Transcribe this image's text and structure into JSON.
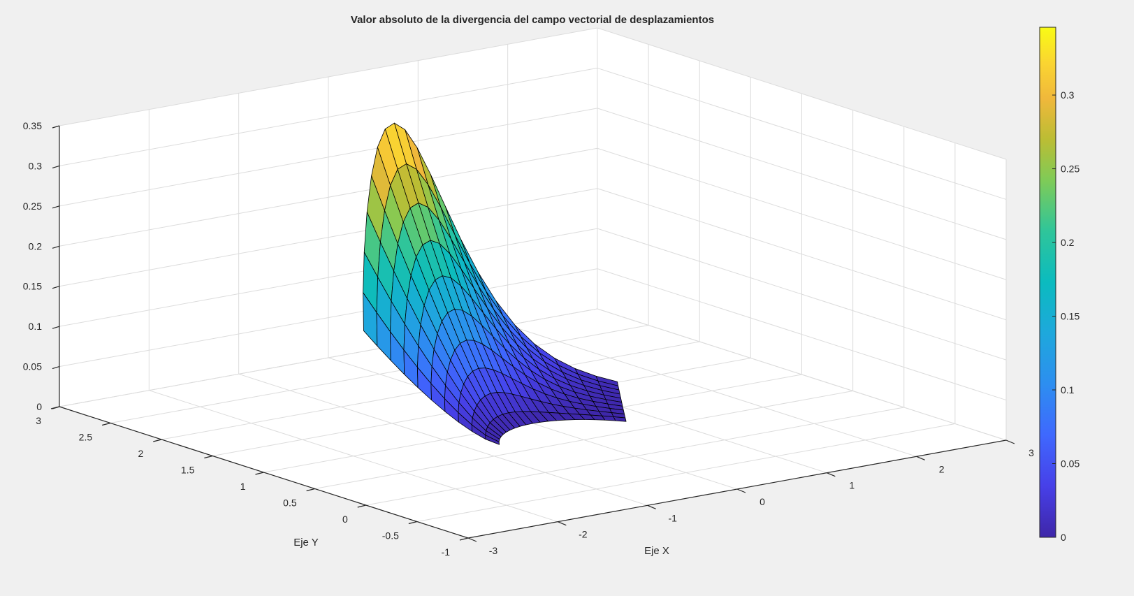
{
  "chart_data": {
    "type": "surface",
    "title": "Valor absoluto de la divergencia del campo vectorial de desplazamientos",
    "xlabel": "Eje X",
    "ylabel": "Eje Y",
    "zlabel": "",
    "xlim": [
      -3,
      3
    ],
    "ylim": [
      -1,
      3
    ],
    "zlim": [
      0,
      0.35
    ],
    "xticks": [
      "-3",
      "-2",
      "-1",
      "0",
      "1",
      "2",
      "3"
    ],
    "yticks": [
      "-1",
      "-0.5",
      "0",
      "0.5",
      "1",
      "1.5",
      "2",
      "2.5",
      "3"
    ],
    "zticks": [
      "0",
      "0.05",
      "0.1",
      "0.15",
      "0.2",
      "0.25",
      "0.3",
      "0.35"
    ],
    "grid": true,
    "colormap": "parula",
    "colorbar": {
      "placement": "right",
      "clim": [
        0,
        0.346
      ],
      "ticks": [
        "0",
        "0.05",
        "0.1",
        "0.15",
        "0.2",
        "0.25",
        "0.3"
      ]
    },
    "surface": {
      "domain": "polar sector",
      "r_range": [
        1,
        2
      ],
      "theta_deg_range": [
        45,
        135
      ],
      "z_min": 0,
      "z_max": 0.346,
      "edge_color": "#000000"
    }
  }
}
